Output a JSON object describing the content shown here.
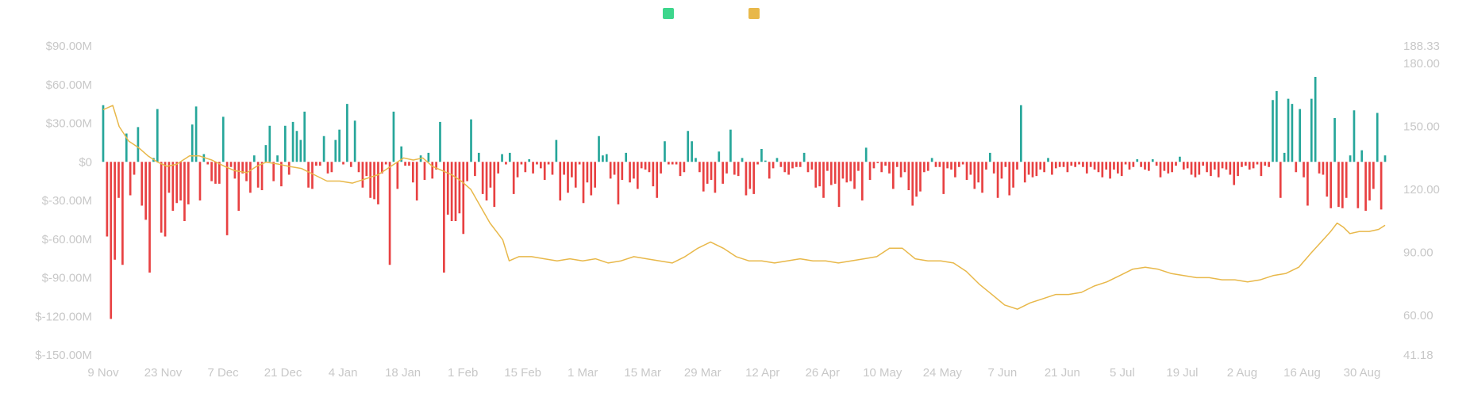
{
  "colors": {
    "inflow": "#26a69a",
    "outflow": "#e84142",
    "price_line": "#e8b84a",
    "legend_inflow": "#3dd68c",
    "legend_price": "#e8b84a",
    "axis_text": "#c8c8c8"
  },
  "legend": [
    {
      "name": "",
      "color": "#3dd68c"
    },
    {
      "name": "",
      "color": "#e8b84a"
    }
  ],
  "chart_data": {
    "type": "bar",
    "title": "",
    "xlabel": "",
    "ylabel": "",
    "x_tick_labels": [
      "9 Nov",
      "23 Nov",
      "7 Dec",
      "21 Dec",
      "4 Jan",
      "18 Jan",
      "1 Feb",
      "15 Feb",
      "1 Mar",
      "15 Mar",
      "29 Mar",
      "12 Apr",
      "26 Apr",
      "10 May",
      "24 May",
      "7 Jun",
      "21 Jun",
      "5 Jul",
      "19 Jul",
      "2 Aug",
      "16 Aug",
      "30 Aug"
    ],
    "y_left": {
      "ticks": [
        "$90.00M",
        "$60.00M",
        "$30.00M",
        "$0",
        "$-30.00M",
        "$-60.00M",
        "$-90.00M",
        "$-120.00M",
        "$-150.00M"
      ],
      "ylim": [
        -150,
        90
      ],
      "unit": "M USD"
    },
    "y_right": {
      "ticks": [
        "188.33",
        "180.00",
        "150.00",
        "120.00",
        "90.00",
        "60.00",
        "41.18"
      ],
      "ylim": [
        41.18,
        188.33
      ]
    },
    "bar_series": {
      "name": "",
      "unit": "M USD",
      "values": [
        44,
        -58,
        -122,
        -76,
        -28,
        -80,
        22,
        -26,
        -10,
        27,
        -34,
        -45,
        -86,
        3,
        41,
        -55,
        -58,
        -24,
        -38,
        -32,
        -30,
        -46,
        -33,
        29,
        43,
        -30,
        6,
        -2,
        -15,
        -17,
        -17,
        35,
        -57,
        -4,
        -13,
        -38,
        -9,
        -15,
        -24,
        5,
        -20,
        -22,
        13,
        28,
        -15,
        5,
        -19,
        28,
        -10,
        31,
        24,
        17,
        39,
        -20,
        -21,
        -3,
        -3,
        20,
        -9,
        -8,
        17,
        25,
        -2,
        45,
        -4,
        32,
        -8,
        -20,
        -11,
        -28,
        -29,
        -33,
        -9,
        -2,
        -80,
        39,
        -21,
        12,
        -3,
        -3,
        -16,
        -30,
        5,
        -14,
        7,
        -13,
        -6,
        31,
        -86,
        -41,
        -46,
        -46,
        -40,
        -56,
        -15,
        33,
        -11,
        7,
        -25,
        -30,
        -20,
        -35,
        -9,
        6,
        -2,
        7,
        -25,
        -12,
        -2,
        -8,
        2,
        -9,
        -2,
        -5,
        -14,
        -2,
        -10,
        17,
        -30,
        -10,
        -24,
        -12,
        -20,
        -2,
        -32,
        -16,
        -26,
        -20,
        20,
        5,
        6,
        -13,
        -10,
        -33,
        -14,
        7,
        -16,
        -13,
        -21,
        -5,
        -6,
        -8,
        -19,
        -28,
        -9,
        16,
        -2,
        -2,
        -2,
        -11,
        -8,
        24,
        16,
        3,
        -8,
        -23,
        -17,
        -14,
        -24,
        8,
        -17,
        -9,
        25,
        -10,
        -11,
        3,
        -26,
        -21,
        -25,
        -2,
        10,
        1,
        -13,
        -5,
        3,
        -4,
        -8,
        -10,
        -5,
        -4,
        -4,
        7,
        -8,
        -6,
        -20,
        -19,
        -28,
        -7,
        -18,
        -17,
        -35,
        -13,
        -16,
        -15,
        -21,
        -7,
        -30,
        11,
        -14,
        -5,
        -1,
        -8,
        -3,
        -9,
        -21,
        -4,
        -12,
        -8,
        -22,
        -34,
        -27,
        -23,
        -8,
        -7,
        3,
        -4,
        -4,
        -25,
        -5,
        -6,
        -12,
        -4,
        -2,
        -14,
        -10,
        -21,
        -16,
        -24,
        -6,
        7,
        -9,
        -28,
        -13,
        -4,
        -26,
        -20,
        -6,
        44,
        -16,
        -10,
        -12,
        -11,
        -6,
        -8,
        3,
        -10,
        -5,
        -4,
        -4,
        -8,
        -3,
        -4,
        -2,
        -4,
        -9,
        -4,
        -6,
        -8,
        -12,
        -6,
        -13,
        -6,
        -9,
        -11,
        -2,
        -6,
        -4,
        2,
        -4,
        -6,
        -7,
        2,
        -3,
        -12,
        -7,
        -9,
        -8,
        -3,
        4,
        -6,
        -5,
        -10,
        -12,
        -10,
        -3,
        -8,
        -11,
        -6,
        -12,
        -5,
        -6,
        -10,
        -18,
        -11,
        -4,
        -3,
        -6,
        -5,
        -2,
        -11,
        -3,
        -4,
        48,
        55,
        -28,
        7,
        49,
        45,
        -8,
        41,
        -12,
        -34,
        49,
        66,
        -9,
        -10,
        -27,
        -36,
        34,
        -35,
        -36,
        -28,
        5,
        40,
        -36,
        9,
        -38,
        -30,
        -21,
        38,
        -37,
        5
      ],
      "note_units": "million USD"
    },
    "line_series": {
      "name": "",
      "points": [
        [
          0,
          158
        ],
        [
          3,
          160
        ],
        [
          5,
          150
        ],
        [
          8,
          143
        ],
        [
          11,
          140
        ],
        [
          14,
          136
        ],
        [
          17,
          133
        ],
        [
          20,
          131
        ],
        [
          23,
          132
        ],
        [
          27,
          136
        ],
        [
          30,
          136
        ],
        [
          34,
          134
        ],
        [
          38,
          131
        ],
        [
          41,
          129
        ],
        [
          45,
          128
        ],
        [
          48,
          131
        ],
        [
          51,
          133
        ],
        [
          55,
          132
        ],
        [
          58,
          131
        ],
        [
          62,
          130
        ],
        [
          66,
          127
        ],
        [
          70,
          124
        ],
        [
          74,
          124
        ],
        [
          78,
          123
        ],
        [
          82,
          125
        ],
        [
          86,
          127
        ],
        [
          90,
          131
        ],
        [
          94,
          135
        ],
        [
          97,
          134
        ],
        [
          100,
          135
        ],
        [
          103,
          131
        ],
        [
          106,
          129
        ],
        [
          109,
          127
        ],
        [
          112,
          124
        ],
        [
          115,
          120
        ],
        [
          118,
          112
        ],
        [
          121,
          104
        ],
        [
          123,
          100
        ],
        [
          125,
          96
        ],
        [
          127,
          86
        ],
        [
          130,
          88
        ],
        [
          134,
          88
        ],
        [
          138,
          87
        ],
        [
          142,
          86
        ],
        [
          146,
          87
        ],
        [
          150,
          86
        ],
        [
          154,
          87
        ],
        [
          158,
          85
        ],
        [
          162,
          86
        ],
        [
          166,
          88
        ],
        [
          170,
          87
        ],
        [
          174,
          86
        ],
        [
          178,
          85
        ],
        [
          182,
          88
        ],
        [
          186,
          92
        ],
        [
          190,
          95
        ],
        [
          194,
          92
        ],
        [
          198,
          88
        ],
        [
          202,
          86
        ],
        [
          206,
          86
        ],
        [
          210,
          85
        ],
        [
          214,
          86
        ],
        [
          218,
          87
        ],
        [
          222,
          86
        ],
        [
          226,
          86
        ],
        [
          230,
          85
        ],
        [
          234,
          86
        ],
        [
          238,
          87
        ],
        [
          242,
          88
        ],
        [
          246,
          92
        ],
        [
          250,
          92
        ],
        [
          254,
          87
        ],
        [
          258,
          86
        ],
        [
          262,
          86
        ],
        [
          266,
          85
        ],
        [
          270,
          81
        ],
        [
          274,
          75
        ],
        [
          278,
          70
        ],
        [
          282,
          65
        ],
        [
          286,
          63
        ],
        [
          290,
          66
        ],
        [
          294,
          68
        ],
        [
          298,
          70
        ],
        [
          302,
          70
        ],
        [
          306,
          71
        ],
        [
          310,
          74
        ],
        [
          314,
          76
        ],
        [
          318,
          79
        ],
        [
          322,
          82
        ],
        [
          326,
          83
        ],
        [
          330,
          82
        ],
        [
          334,
          80
        ],
        [
          338,
          79
        ],
        [
          342,
          78
        ],
        [
          346,
          78
        ],
        [
          350,
          77
        ],
        [
          354,
          77
        ],
        [
          358,
          76
        ],
        [
          362,
          77
        ],
        [
          366,
          79
        ],
        [
          370,
          80
        ],
        [
          374,
          83
        ],
        [
          378,
          90
        ],
        [
          381,
          95
        ],
        [
          384,
          100
        ],
        [
          386,
          104
        ],
        [
          388,
          102
        ],
        [
          390,
          99
        ],
        [
          393,
          100
        ],
        [
          396,
          100
        ],
        [
          399,
          101
        ],
        [
          401,
          103
        ]
      ]
    }
  }
}
